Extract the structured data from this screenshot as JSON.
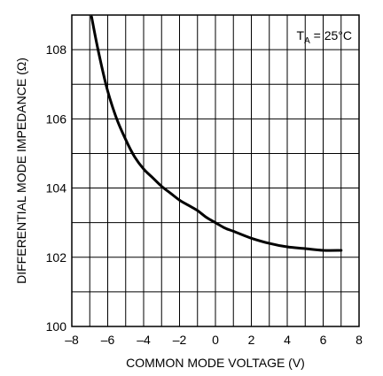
{
  "chart_data": {
    "type": "line",
    "title": "",
    "xlabel": "COMMON MODE VOLTAGE (V)",
    "ylabel": "DIFFERENTIAL MODE IMPEDANCE (Ω)",
    "xlim": [
      -8,
      8
    ],
    "ylim": [
      100,
      109
    ],
    "x_ticks": [
      "–8",
      "–6",
      "–4",
      "–2",
      "0",
      "2",
      "4",
      "6",
      "8"
    ],
    "y_ticks": [
      "100",
      "102",
      "104",
      "106",
      "108"
    ],
    "grid": true,
    "annotation": {
      "main": "T",
      "sub": "A",
      "rest": " = 25°C"
    },
    "series": [
      {
        "x": [
          -6.9,
          -6.5,
          -6.0,
          -5.5,
          -5.0,
          -4.5,
          -4.0,
          -3.5,
          -3.0,
          -2.5,
          -2.0,
          -1.5,
          -1.0,
          -0.5,
          0.0,
          0.5,
          1.0,
          2.0,
          3.0,
          4.0,
          5.0,
          6.0,
          7.0
        ],
        "y": [
          108.95,
          107.9,
          106.8,
          106.0,
          105.4,
          104.9,
          104.55,
          104.3,
          104.05,
          103.85,
          103.65,
          103.5,
          103.35,
          103.15,
          103.0,
          102.85,
          102.75,
          102.55,
          102.4,
          102.3,
          102.25,
          102.2,
          102.2
        ]
      }
    ]
  }
}
